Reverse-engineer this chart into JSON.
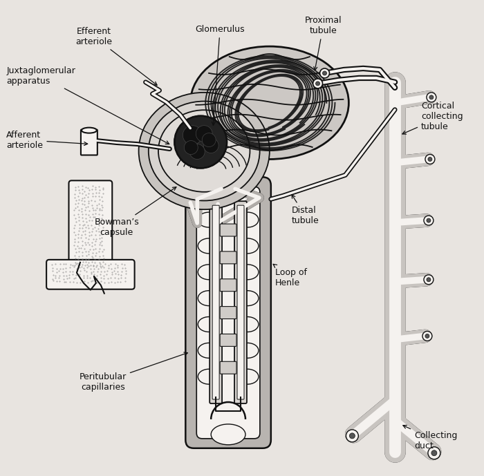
{
  "background_color": "#e8e4e0",
  "labels": {
    "efferent_arteriole": "Efferent\narteriole",
    "glomerulus": "Glomerulus",
    "proximal_tubule": "Proximal\ntubule",
    "juxtaglomerular": "Juxtaglomerular\napparatus",
    "cortical_collecting": "Cortical\ncollecting\ntubule",
    "afferent_arteriole": "Afferent\narteriole",
    "bowmans_capsule": "Bowman’s\ncapsule",
    "distal_tubule": "Distal\ntubule",
    "loop_of_henle": "Loop of\nHenle",
    "peritubular": "Peritubular\ncapillaries",
    "collecting_duct": "Collecting\nduct"
  },
  "lc": "#111111",
  "stipple": "#999999",
  "white_fill": "#f5f2ef",
  "light_gray": "#c8c4c0",
  "font_size": 9,
  "figsize": [
    7.0,
    6.89
  ],
  "dpi": 100
}
